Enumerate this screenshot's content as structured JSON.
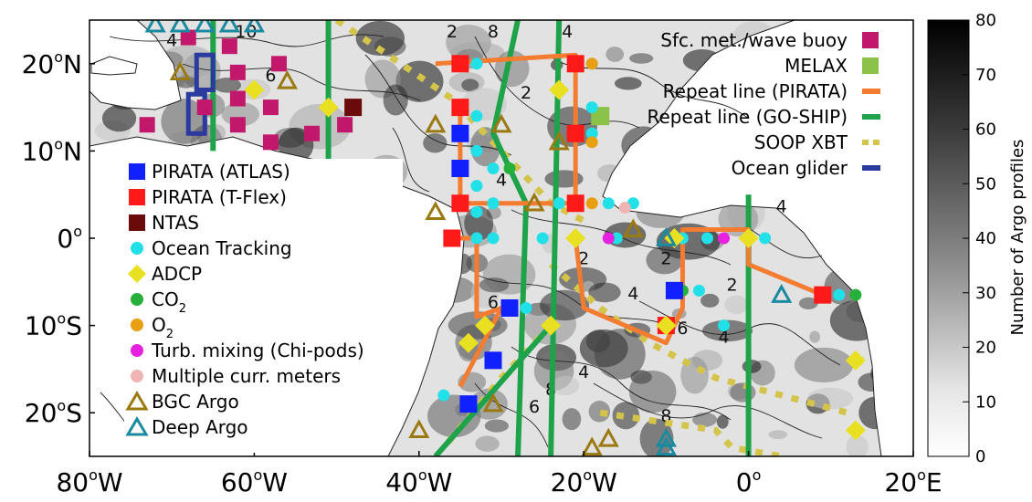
{
  "map": {
    "lon_labels": [
      {
        "lon": -80,
        "deg": "80",
        "hem": "W"
      },
      {
        "lon": -60,
        "deg": "60",
        "hem": "W"
      },
      {
        "lon": -40,
        "deg": "40",
        "hem": "W"
      },
      {
        "lon": -20,
        "deg": "20",
        "hem": "W"
      },
      {
        "lon": 0,
        "deg": "0",
        "hem": ""
      },
      {
        "lon": 20,
        "deg": "20",
        "hem": "E"
      }
    ],
    "lat_labels": [
      {
        "lat": 20,
        "deg": "20",
        "hem": "N"
      },
      {
        "lat": 10,
        "deg": "10",
        "hem": "N"
      },
      {
        "lat": 0,
        "deg": "0",
        "hem": ""
      },
      {
        "lat": -10,
        "deg": "10",
        "hem": "S"
      },
      {
        "lat": -20,
        "deg": "20",
        "hem": "S"
      }
    ],
    "contour_labels": [
      "4",
      "10",
      "6",
      "2",
      "8",
      "4",
      "2",
      "4",
      "2",
      "6",
      "8",
      "6",
      "4",
      "6",
      "2",
      "4",
      "2",
      "8",
      "4",
      "2",
      "4"
    ]
  },
  "colorbar": {
    "label": "Number of Argo profiles",
    "ticks": [
      0,
      10,
      20,
      30,
      40,
      50,
      60,
      70,
      80
    ],
    "range": [
      0,
      80
    ]
  },
  "legend_right": {
    "items": [
      {
        "label": "Sfc. met./wave buoy",
        "symbol": "square",
        "color": "#c2186b"
      },
      {
        "label": "MELAX",
        "symbol": "square",
        "color": "#8bc34a"
      },
      {
        "label": "Repeat line (PIRATA)",
        "symbol": "line",
        "color": "#f47c30"
      },
      {
        "label": "Repeat line (GO-SHIP)",
        "symbol": "line",
        "color": "#1fa34a"
      },
      {
        "label": "SOOP XBT",
        "symbol": "dashes",
        "color": "#d4c44a"
      },
      {
        "label": "Ocean glider",
        "symbol": "line",
        "color": "#2b3a9f"
      }
    ]
  },
  "legend_left": {
    "items": [
      {
        "label": "PIRATA (ATLAS)",
        "symbol": "square",
        "color": "#1020ff"
      },
      {
        "label": "PIRATA (T-Flex)",
        "symbol": "square",
        "color": "#ff1a1a"
      },
      {
        "label": "NTAS",
        "symbol": "square",
        "color": "#6b0a0a"
      },
      {
        "label": "Ocean Tracking",
        "symbol": "circle",
        "color": "#22e0e8"
      },
      {
        "label": "ADCP",
        "symbol": "diamond",
        "color": "#e8e020"
      },
      {
        "label": "CO",
        "sub": "2",
        "symbol": "circle",
        "color": "#28b03c"
      },
      {
        "label": "O",
        "sub": "2",
        "symbol": "circle",
        "color": "#e8a010"
      },
      {
        "label": "Turb. mixing (Chi-pods)",
        "symbol": "circle",
        "color": "#e820e0"
      },
      {
        "label": "Multiple curr. meters",
        "symbol": "circle",
        "color": "#f0b4b4"
      },
      {
        "label": "BGC Argo",
        "symbol": "triangle",
        "color": "#9a7a10"
      },
      {
        "label": "Deep Argo",
        "symbol": "triangle",
        "color": "#1a8aa0"
      }
    ]
  },
  "colors": {
    "ocean_light": "#e2e2e2",
    "land": "#ffffff",
    "pirata_atlas": "#1020ff",
    "pirata_tflex": "#ff1a1a",
    "ntas": "#6b0a0a",
    "ocean_tracking": "#22e0e8",
    "adcp": "#e8e020",
    "co2": "#28b03c",
    "o2": "#e8a010",
    "chi": "#e820e0",
    "curr": "#f0b4b4",
    "bgc": "#9a7a10",
    "deep": "#1a8aa0",
    "met": "#c2186b",
    "melax": "#8bc34a",
    "pirata_line": "#f47c30",
    "goship_line": "#1fa34a",
    "xbt": "#d4c44a",
    "glider": "#2b3a9f"
  },
  "observations": {
    "atlas": [
      [
        -35,
        12
      ],
      [
        -35,
        8
      ],
      [
        -9,
        -6
      ],
      [
        -29,
        -8
      ],
      [
        -31,
        -14
      ],
      [
        -34,
        -19
      ]
    ],
    "tflex": [
      [
        -35,
        20
      ],
      [
        -35,
        15
      ],
      [
        -21,
        20
      ],
      [
        -21,
        12
      ],
      [
        -35,
        4
      ],
      [
        -21,
        4
      ],
      [
        -36,
        0
      ],
      [
        -10,
        -10
      ],
      [
        9,
        -6.5
      ]
    ],
    "ntas": [
      [
        -48,
        15
      ]
    ],
    "ocean_tracking": [
      [
        -33,
        20
      ],
      [
        -33,
        14
      ],
      [
        -33,
        10
      ],
      [
        -33,
        6
      ],
      [
        -33,
        3
      ],
      [
        -31,
        0
      ],
      [
        -25,
        0
      ],
      [
        -19,
        20
      ],
      [
        -19,
        15
      ],
      [
        -19,
        12
      ],
      [
        -17,
        4
      ],
      [
        -14,
        4
      ],
      [
        -16,
        0
      ],
      [
        -8,
        0
      ],
      [
        -5,
        0
      ],
      [
        -3,
        -10
      ],
      [
        -6,
        -6
      ],
      [
        2,
        0
      ],
      [
        11,
        -6.5
      ],
      [
        -27,
        -8
      ],
      [
        -31,
        4
      ],
      [
        -31,
        8
      ],
      [
        -33,
        0
      ],
      [
        -23,
        4
      ],
      [
        -37,
        -18
      ]
    ],
    "adcp": [
      [
        -60,
        17
      ],
      [
        -51,
        15
      ],
      [
        -23,
        17
      ],
      [
        -21,
        0
      ],
      [
        -9,
        0
      ],
      [
        0,
        0
      ],
      [
        -10,
        -10
      ],
      [
        -32,
        -10
      ],
      [
        -34,
        -12
      ],
      [
        13,
        -14
      ],
      [
        13,
        -22
      ],
      [
        -24,
        -10
      ]
    ],
    "co2": [
      [
        -29,
        8
      ],
      [
        -21,
        0
      ],
      [
        -8,
        -6
      ],
      [
        13,
        -6.5
      ]
    ],
    "o2": [
      [
        -19,
        20
      ],
      [
        -19,
        11
      ],
      [
        -19,
        4
      ]
    ],
    "chi": [
      [
        -17,
        0
      ],
      [
        -3,
        0
      ]
    ],
    "curr": [
      [
        -15,
        3.5
      ]
    ],
    "bgc": [
      [
        -30,
        13
      ],
      [
        -23,
        11
      ],
      [
        -31,
        -19
      ],
      [
        -40,
        -22
      ],
      [
        -19,
        -24
      ],
      [
        -17,
        -23
      ],
      [
        -26,
        4
      ],
      [
        -14,
        1
      ],
      [
        -38,
        3
      ],
      [
        -56,
        18
      ],
      [
        -69,
        19
      ],
      [
        -38,
        13
      ]
    ],
    "deep": [
      [
        -72,
        24.5
      ],
      [
        -69,
        24.5
      ],
      [
        -66,
        24.5
      ],
      [
        -63,
        24.5
      ],
      [
        -60,
        24.5
      ],
      [
        -10,
        0
      ],
      [
        4,
        -6.5
      ],
      [
        -10,
        -23
      ],
      [
        -10,
        -24
      ]
    ],
    "met": [
      [
        -68,
        23
      ],
      [
        -62,
        19
      ],
      [
        -57,
        20
      ],
      [
        -62,
        16
      ],
      [
        -66,
        15
      ],
      [
        -62,
        13
      ],
      [
        -73,
        13
      ],
      [
        -58,
        11
      ],
      [
        -53,
        12
      ],
      [
        -49,
        13
      ],
      [
        -58,
        15
      ],
      [
        -63,
        22
      ]
    ],
    "melax": [
      [
        -18,
        14
      ]
    ],
    "pirata_lines": [
      [
        [
          -38,
          20
        ],
        [
          -21,
          21
        ],
        [
          -21,
          4
        ],
        [
          -35,
          4
        ],
        [
          -35,
          15
        ]
      ],
      [
        [
          -36,
          0
        ],
        [
          -33,
          0
        ],
        [
          -33,
          -9
        ],
        [
          -30,
          -8
        ],
        [
          -35,
          -17
        ]
      ],
      [
        [
          -21,
          0
        ],
        [
          -20,
          -8
        ],
        [
          -10,
          -12
        ],
        [
          -8,
          -8
        ],
        [
          -8,
          1
        ],
        [
          0,
          1
        ],
        [
          0,
          -3
        ],
        [
          9,
          -6.5
        ]
      ]
    ],
    "goship_lines": [
      [
        [
          -65,
          25
        ],
        [
          -65,
          10
        ]
      ],
      [
        [
          -51,
          25
        ],
        [
          -51,
          6
        ]
      ],
      [
        [
          -23,
          25
        ],
        [
          -24,
          -25
        ]
      ],
      [
        [
          -28,
          25
        ],
        [
          -31,
          12
        ],
        [
          -27,
          4
        ],
        [
          -28,
          -25
        ]
      ],
      [
        [
          0,
          5
        ],
        [
          0,
          -25
        ]
      ],
      [
        [
          -38,
          -25
        ],
        [
          -24,
          -10
        ]
      ]
    ],
    "xbt_lines": [
      [
        [
          -50,
          25
        ],
        [
          -36,
          16
        ],
        [
          -30,
          10
        ],
        [
          -24,
          4
        ],
        [
          -20,
          2
        ]
      ],
      [
        [
          -24,
          -3
        ],
        [
          -18,
          -8
        ],
        [
          -12,
          -12
        ],
        [
          -4,
          -16
        ],
        [
          4,
          -18
        ],
        [
          12,
          -20
        ]
      ],
      [
        [
          -18,
          -20
        ],
        [
          -4,
          -22
        ],
        [
          -2,
          -24
        ],
        [
          4,
          -25
        ]
      ],
      [
        [
          -24,
          -10
        ],
        [
          -30,
          -16
        ],
        [
          -37,
          -24
        ]
      ]
    ],
    "gliders": [
      [
        -67,
        17,
        -65,
        21
      ],
      [
        -68,
        12,
        -66,
        16.5
      ]
    ]
  }
}
